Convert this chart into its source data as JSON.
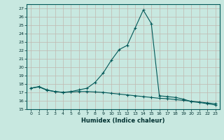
{
  "xlabel": "Humidex (Indice chaleur)",
  "ylabel": "",
  "bg_color": "#c8e8e0",
  "line_color": "#005858",
  "grid_color": "#b0d8d0",
  "xlim": [
    -0.5,
    23.5
  ],
  "ylim": [
    15,
    27.5
  ],
  "yticks": [
    15,
    16,
    17,
    18,
    19,
    20,
    21,
    22,
    23,
    24,
    25,
    26,
    27
  ],
  "xticks": [
    0,
    1,
    2,
    3,
    4,
    5,
    6,
    7,
    8,
    9,
    10,
    11,
    12,
    13,
    14,
    15,
    16,
    17,
    18,
    19,
    20,
    21,
    22,
    23
  ],
  "line1_x": [
    0,
    1,
    2,
    3,
    4,
    5,
    6,
    7,
    8,
    9,
    10,
    11,
    12,
    13,
    14,
    15,
    16,
    17,
    18,
    19,
    20,
    21,
    22,
    23
  ],
  "line1_y": [
    17.5,
    17.7,
    17.3,
    17.1,
    17.0,
    17.1,
    17.3,
    17.5,
    18.2,
    19.3,
    20.8,
    22.1,
    22.6,
    24.7,
    26.8,
    25.2,
    16.6,
    16.5,
    16.4,
    16.2,
    15.9,
    15.8,
    15.65,
    15.5
  ],
  "line2_x": [
    0,
    1,
    2,
    3,
    4,
    5,
    6,
    7,
    8,
    9,
    10,
    11,
    12,
    13,
    14,
    15,
    16,
    17,
    18,
    19,
    20,
    21,
    22,
    23
  ],
  "line2_y": [
    17.5,
    17.65,
    17.25,
    17.1,
    17.0,
    17.05,
    17.1,
    17.1,
    17.05,
    17.0,
    16.9,
    16.8,
    16.7,
    16.6,
    16.5,
    16.4,
    16.3,
    16.25,
    16.15,
    16.05,
    15.95,
    15.85,
    15.75,
    15.65
  ]
}
